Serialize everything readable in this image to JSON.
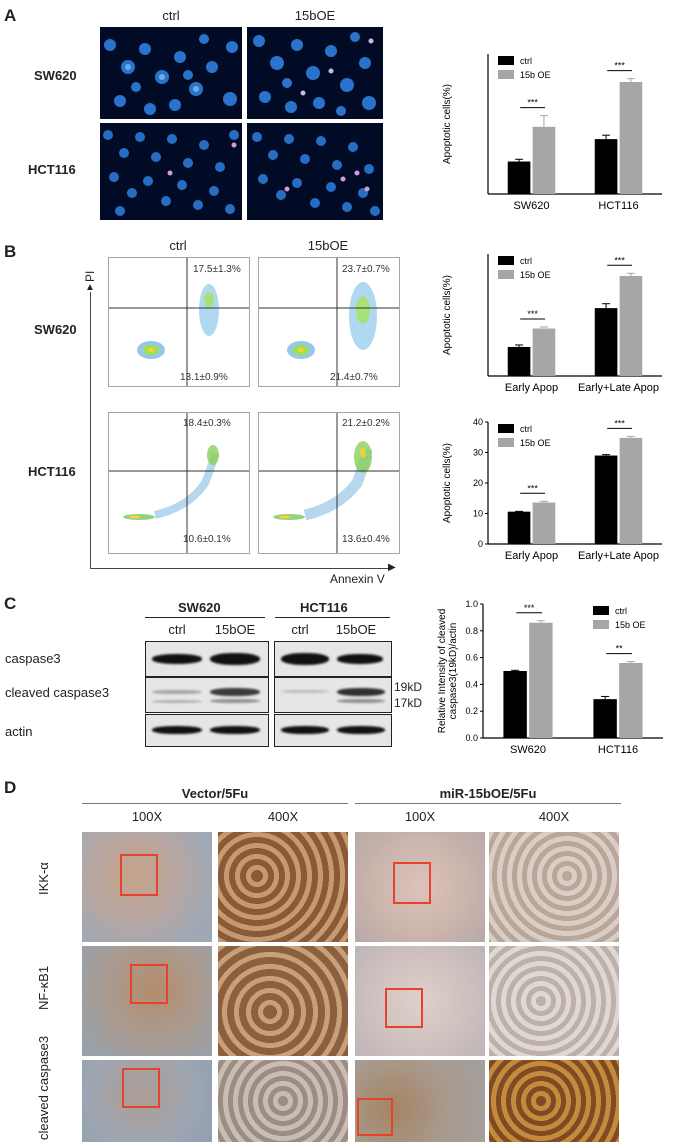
{
  "panels": {
    "A": {
      "label": "A",
      "cols": [
        "ctrl",
        "15bOE"
      ],
      "rows": [
        "SW620",
        "HCT116"
      ]
    },
    "B": {
      "label": "B",
      "cols": [
        "ctrl",
        "15bOE"
      ],
      "rows": [
        "SW620",
        "HCT116"
      ],
      "xaxis": "Annexin V",
      "yaxis": "PI",
      "quadrants": {
        "sw620_ctrl_ur": "17.5±1.3%",
        "sw620_ctrl_lr": "13.1±0.9%",
        "sw620_oe_ur": "23.7±0.7%",
        "sw620_oe_lr": "21.4±0.7%",
        "hct_ctrl_ur": "18.4±0.3%",
        "hct_ctrl_lr": "10.6±0.1%",
        "hct_oe_ur": "21.2±0.2%",
        "hct_oe_lr": "13.6±0.4%"
      }
    },
    "C": {
      "label": "C",
      "lines": [
        "SW620",
        "HCT116"
      ],
      "lanes": [
        "ctrl",
        "15bOE",
        "ctrl",
        "15bOE"
      ],
      "proteins": [
        "caspase3",
        "cleaved caspase3",
        "actin"
      ],
      "markers": [
        "19kD",
        "17kD"
      ]
    },
    "D": {
      "label": "D",
      "groups": [
        "Vector/5Fu",
        "miR-15bOE/5Fu"
      ],
      "mags": [
        "100X",
        "400X",
        "100X",
        "400X"
      ],
      "stains": [
        "IKK-α",
        "NF-κB1",
        "cleaved caspase3"
      ]
    }
  },
  "colors": {
    "ctrl": "#000000",
    "oe": "#a6a6a6"
  },
  "chart_data": [
    {
      "type": "bar",
      "categories": [
        "SW620",
        "HCT116"
      ],
      "series": [
        {
          "name": "ctrl",
          "values": [
            5.8,
            9.8
          ],
          "errors": [
            0.4,
            0.7
          ]
        },
        {
          "name": "15b OE",
          "values": [
            12.0,
            20.0
          ],
          "errors": [
            2.0,
            0.6
          ]
        }
      ],
      "xlabel": "",
      "ylabel": "Apoptotic cells(%)",
      "ylim": [
        0,
        25
      ],
      "significance": [
        "***",
        "***"
      ],
      "legend": "top-left",
      "yticks": []
    },
    {
      "type": "bar",
      "categories": [
        "Early Apop",
        "Early+Late Apop"
      ],
      "series": [
        {
          "name": "ctrl",
          "values": [
            13.1,
            30.6
          ],
          "errors": [
            0.9,
            2.0
          ]
        },
        {
          "name": "15b OE",
          "values": [
            21.4,
            45.1
          ],
          "errors": [
            0.7,
            1.2
          ]
        }
      ],
      "xlabel": "",
      "ylabel": "Apoptotic cells(%)",
      "ylim": [
        0,
        55
      ],
      "significance": [
        "***",
        "***"
      ],
      "legend": "top-left",
      "yticks": []
    },
    {
      "type": "bar",
      "categories": [
        "Early Apop",
        "Early+Late Apop"
      ],
      "series": [
        {
          "name": "ctrl",
          "values": [
            10.6,
            29.0
          ],
          "errors": [
            0.1,
            0.3
          ]
        },
        {
          "name": "15b OE",
          "values": [
            13.6,
            34.8
          ],
          "errors": [
            0.4,
            0.5
          ]
        }
      ],
      "xlabel": "",
      "ylabel": "Apoptotic cells(%)",
      "ylim": [
        0,
        40
      ],
      "significance": [
        "***",
        "***"
      ],
      "legend": "top-left",
      "yticks": [
        "0",
        "10",
        "20",
        "30",
        "40"
      ]
    },
    {
      "type": "bar",
      "categories": [
        "SW620",
        "HCT116"
      ],
      "series": [
        {
          "name": "ctrl",
          "values": [
            0.5,
            0.29
          ],
          "errors": [
            0.005,
            0.02
          ]
        },
        {
          "name": "15b OE",
          "values": [
            0.86,
            0.56
          ],
          "errors": [
            0.015,
            0.01
          ]
        }
      ],
      "xlabel": "",
      "ylabel": "Relative Intensity of cleaved caspase3(19kD)/actin",
      "ylim": [
        0,
        1.0
      ],
      "significance": [
        "***",
        "**"
      ],
      "legend": "top-right",
      "yticks": [
        "0.0",
        "0.2",
        "0.4",
        "0.6",
        "0.8",
        "1.0"
      ]
    }
  ]
}
